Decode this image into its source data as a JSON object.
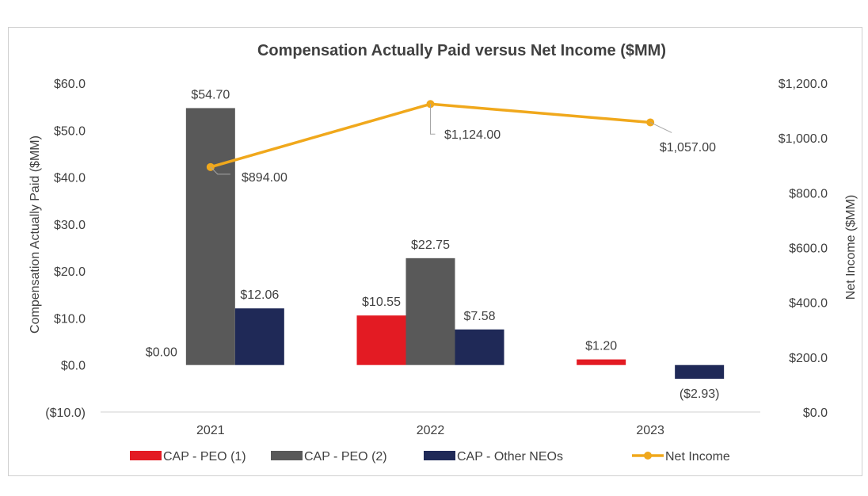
{
  "chart_data": {
    "type": "bar",
    "title": "Compensation Actually Paid versus Net Income ($MM)",
    "categories": [
      "2021",
      "2022",
      "2023"
    ],
    "ylabel": "Compensation Actually Paid ($MM)",
    "y2label": "Net Income ($MM)",
    "ylim": [
      -10,
      60
    ],
    "yticks": [
      -10,
      0,
      10,
      20,
      30,
      40,
      50,
      60
    ],
    "ytick_labels": [
      "($10.0)",
      "$0.0",
      "$10.0",
      "$20.0",
      "$30.0",
      "$40.0",
      "$50.0",
      "$60.0"
    ],
    "y2lim": [
      0,
      1200
    ],
    "y2ticks": [
      0,
      200,
      400,
      600,
      800,
      1000,
      1200
    ],
    "y2tick_labels": [
      "$0.0",
      "$200.0",
      "$400.0",
      "$600.0",
      "$800.0",
      "$1,000.0",
      "$1,200.0"
    ],
    "grid": false,
    "legend_position": "bottom",
    "series": [
      {
        "name": "CAP - PEO (1)",
        "kind": "bar",
        "axis": "left",
        "color": "#e31b23",
        "values": [
          0.0,
          10.55,
          1.2
        ],
        "labels": [
          "$0.00",
          "$10.55",
          "$1.20"
        ]
      },
      {
        "name": "CAP - PEO (2)",
        "kind": "bar",
        "axis": "left",
        "color": "#595959",
        "values": [
          54.7,
          22.75,
          null
        ],
        "labels": [
          "$54.70",
          "$22.75",
          ""
        ]
      },
      {
        "name": "CAP - Other NEOs",
        "kind": "bar",
        "axis": "left",
        "color": "#1f2957",
        "values": [
          12.06,
          7.58,
          -2.93
        ],
        "labels": [
          "$12.06",
          "$7.58",
          "($2.93)"
        ]
      },
      {
        "name": "Net Income",
        "kind": "line",
        "axis": "right",
        "color": "#f0a81c",
        "values": [
          894.0,
          1124.0,
          1057.0
        ],
        "labels": [
          "$894.00",
          "$1,124.00",
          "$1,057.00"
        ]
      }
    ]
  }
}
